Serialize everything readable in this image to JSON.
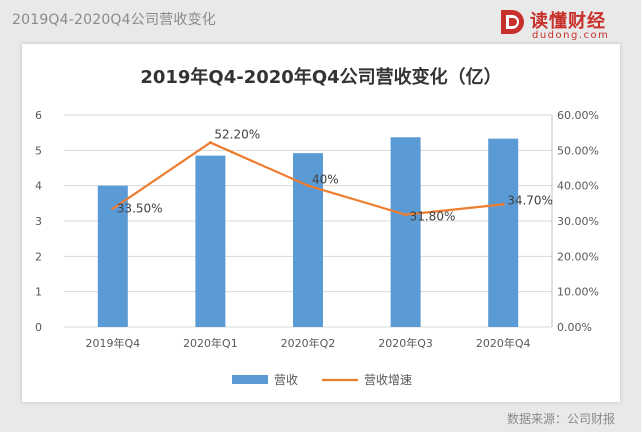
{
  "page": {
    "title": "2019Q4-2020Q4公司营收变化",
    "source": "数据来源：公司财报"
  },
  "logo": {
    "name": "读懂财经",
    "url": "dudong.com",
    "color": "#c8312b"
  },
  "chart_data": {
    "type": "bar",
    "title": "2019年Q4-2020年Q4公司营收变化（亿）",
    "categories": [
      "2019年Q4",
      "2020年Q1",
      "2020年Q2",
      "2020年Q3",
      "2020年Q4"
    ],
    "series": [
      {
        "name": "营收",
        "type": "bar",
        "axis": "left",
        "color": "#5b9bd5",
        "values": [
          4.0,
          4.85,
          4.92,
          5.37,
          5.33
        ]
      },
      {
        "name": "营收增速",
        "type": "line",
        "axis": "right",
        "color": "#ed7d31",
        "values": [
          33.5,
          52.2,
          40.0,
          31.8,
          34.7
        ],
        "labels": [
          "33.50%",
          "52.20%",
          "40%",
          "31.80%",
          "34.70%"
        ]
      }
    ],
    "y_left": {
      "min": 0,
      "max": 6,
      "ticks": [
        "0",
        "1",
        "2",
        "3",
        "4",
        "5",
        "6"
      ]
    },
    "y_right": {
      "min": 0,
      "max": 60,
      "ticks": [
        "0.00%",
        "10.00%",
        "20.00%",
        "30.00%",
        "40.00%",
        "50.00%",
        "60.00%"
      ]
    },
    "grid": true,
    "legend_position": "bottom"
  }
}
